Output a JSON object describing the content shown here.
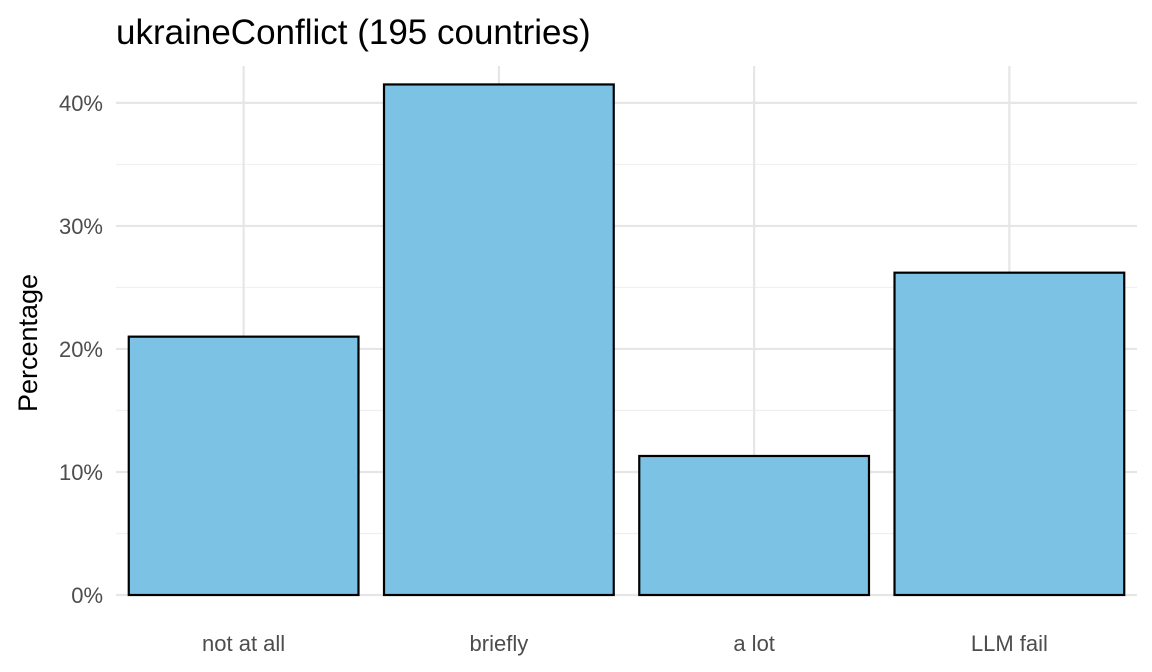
{
  "chart_data": {
    "type": "bar",
    "title": "ukraineConflict (195 countries)",
    "xlabel": "",
    "ylabel": "Percentage",
    "categories": [
      "not at all",
      "briefly",
      "a lot",
      "LLM fail"
    ],
    "values": [
      21.0,
      41.5,
      11.3,
      26.2
    ],
    "y_unit": "%",
    "ylim": [
      0,
      43
    ],
    "y_ticks": [
      0,
      10,
      20,
      30,
      40
    ],
    "y_tick_labels": [
      "0%",
      "10%",
      "20%",
      "30%",
      "40%"
    ],
    "grid": true,
    "legend": "none",
    "colors": {
      "bar_fill": "#7bc2e5",
      "bar_stroke": "#000000",
      "grid_major": "#e6e6e6",
      "grid_minor": "#f0f0f0",
      "background": "#ffffff"
    }
  }
}
